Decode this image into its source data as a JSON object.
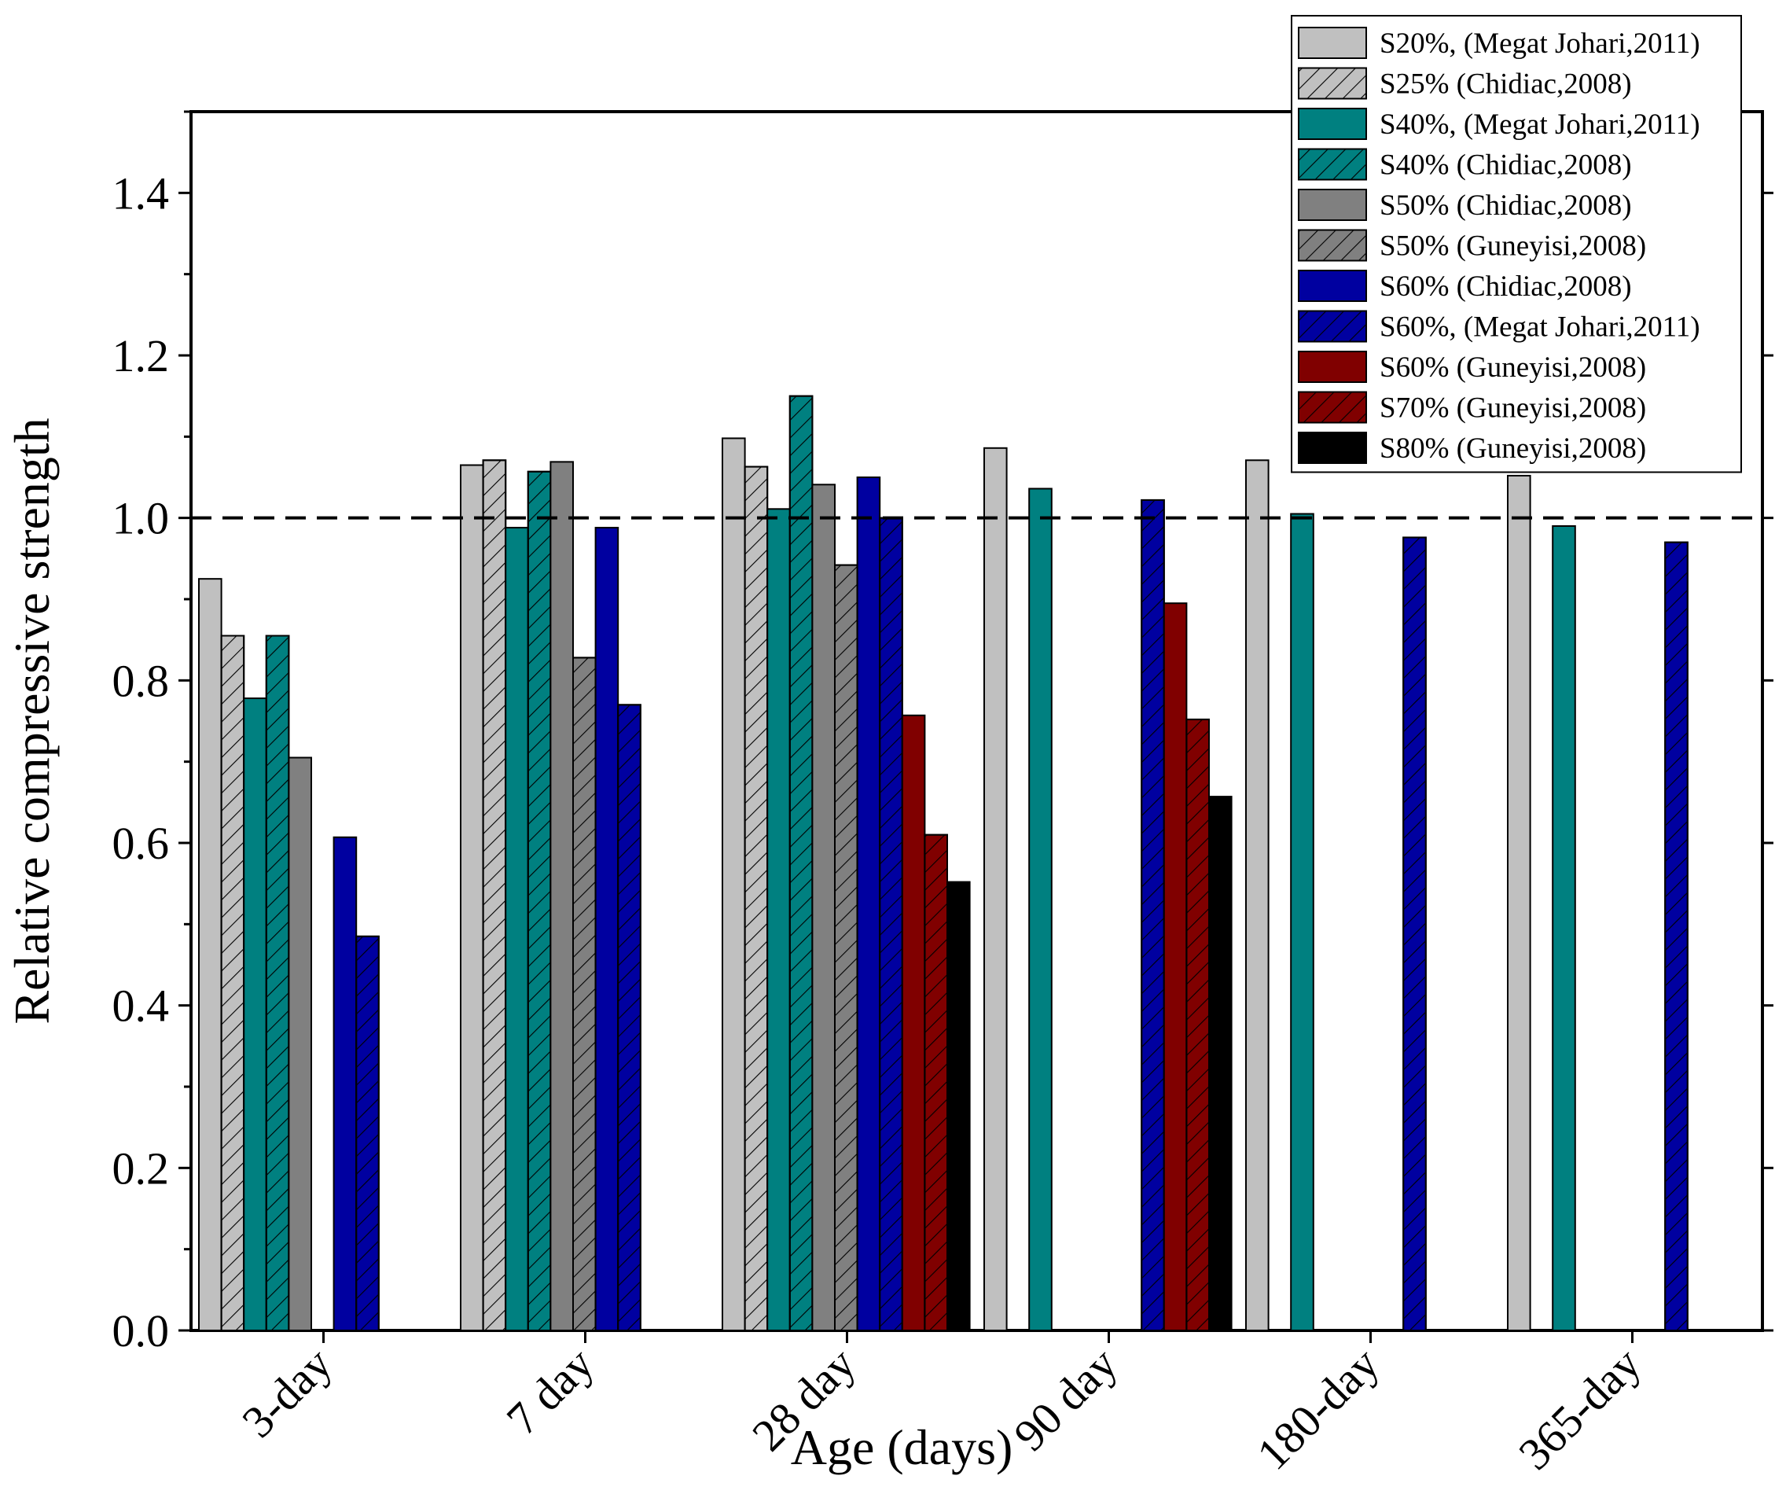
{
  "chart_data": {
    "type": "bar",
    "title": "",
    "xlabel": "Age (days)",
    "ylabel": "Relative compressive strength",
    "ylim": [
      0,
      1.5
    ],
    "yticks": [
      "0.0",
      "0.2",
      "0.4",
      "0.6",
      "0.8",
      "1.0",
      "1.2",
      "1.4"
    ],
    "reference_line": 1.0,
    "grid": false,
    "legend_position": "top-right",
    "categories": [
      "3-day",
      "7 day",
      "28 day",
      "90 day",
      "180-day",
      "365-day"
    ],
    "series": [
      {
        "name": "S20%, (Megat Johari,2011)",
        "color": "#c0c0c0",
        "hatch": false,
        "values": [
          0.925,
          1.065,
          1.098,
          1.086,
          1.071,
          1.052
        ]
      },
      {
        "name": "S25% (Chidiac,2008)",
        "color": "#c0c0c0",
        "hatch": true,
        "values": [
          0.855,
          1.071,
          1.063,
          null,
          null,
          null
        ]
      },
      {
        "name": "S40%, (Megat Johari,2011)",
        "color": "#008080",
        "hatch": false,
        "values": [
          0.778,
          0.988,
          1.011,
          1.036,
          1.005,
          0.99
        ]
      },
      {
        "name": "S40% (Chidiac,2008)",
        "color": "#008080",
        "hatch": true,
        "values": [
          0.855,
          1.057,
          1.15,
          null,
          null,
          null
        ]
      },
      {
        "name": "S50% (Chidiac,2008)",
        "color": "#808080",
        "hatch": false,
        "values": [
          0.705,
          1.069,
          1.041,
          null,
          null,
          null
        ]
      },
      {
        "name": "S50% (Guneyisi,2008)",
        "color": "#808080",
        "hatch": true,
        "values": [
          null,
          0.828,
          0.942,
          null,
          null,
          null
        ]
      },
      {
        "name": "S60% (Chidiac,2008)",
        "color": "#0000a0",
        "hatch": false,
        "values": [
          0.607,
          0.988,
          1.05,
          null,
          null,
          null
        ]
      },
      {
        "name": "S60%, (Megat Johari,2011)",
        "color": "#0000a0",
        "hatch": true,
        "values": [
          0.485,
          0.77,
          1.0,
          1.022,
          0.976,
          0.97
        ]
      },
      {
        "name": "S60% (Guneyisi,2008)",
        "color": "#800000",
        "hatch": false,
        "values": [
          null,
          null,
          0.757,
          0.895,
          null,
          null
        ]
      },
      {
        "name": "S70% (Guneyisi,2008)",
        "color": "#800000",
        "hatch": true,
        "values": [
          null,
          null,
          0.61,
          0.752,
          null,
          null
        ]
      },
      {
        "name": "S80% (Guneyisi,2008)",
        "color": "#000000",
        "hatch": false,
        "values": [
          null,
          null,
          0.552,
          0.657,
          null,
          null
        ]
      }
    ]
  }
}
